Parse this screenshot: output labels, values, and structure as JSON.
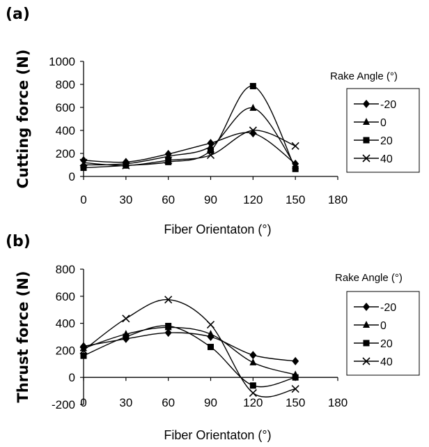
{
  "chart_data": [
    {
      "panel_label": "(a)",
      "type": "line",
      "ylabel": "Cutting force (N)",
      "xlabel": "Fiber Orientaton (°)",
      "x_ticks": [
        "0",
        "30",
        "60",
        "90",
        "120",
        "150",
        "180"
      ],
      "y_ticks": [
        "0",
        "200",
        "400",
        "600",
        "800",
        "1000"
      ],
      "xlim": [
        0,
        180
      ],
      "ylim": [
        0,
        1000
      ],
      "legend_title": "Rake Angle (°)",
      "legend_position": "right",
      "x": [
        0,
        30,
        60,
        90,
        120,
        150
      ],
      "series": [
        {
          "name": "-20",
          "marker": "diamond",
          "values": [
            140,
            125,
            195,
            290,
            375,
            110
          ]
        },
        {
          "name": "0",
          "marker": "triangle",
          "values": [
            100,
            110,
            175,
            260,
            595,
            90
          ]
        },
        {
          "name": "20",
          "marker": "square",
          "values": [
            75,
            95,
            125,
            225,
            785,
            65
          ]
        },
        {
          "name": "40",
          "marker": "x",
          "values": [
            120,
            95,
            140,
            185,
            400,
            265
          ]
        }
      ]
    },
    {
      "panel_label": "(b)",
      "type": "line",
      "ylabel": "Thrust force (N)",
      "xlabel": "Fiber Orientaton (°)",
      "x_ticks": [
        "0",
        "30",
        "60",
        "90",
        "120",
        "150",
        "180"
      ],
      "y_ticks": [
        "-200",
        "0",
        "200",
        "400",
        "600",
        "800"
      ],
      "xlim": [
        0,
        180
      ],
      "ylim": [
        -200,
        800
      ],
      "legend_title": "Rake Angle (°)",
      "legend_position": "right",
      "x": [
        0,
        30,
        60,
        90,
        120,
        150
      ],
      "series": [
        {
          "name": "-20",
          "marker": "diamond",
          "values": [
            230,
            285,
            330,
            300,
            165,
            120
          ]
        },
        {
          "name": "0",
          "marker": "triangle",
          "values": [
            215,
            320,
            370,
            320,
            110,
            20
          ]
        },
        {
          "name": "20",
          "marker": "square",
          "values": [
            160,
            300,
            380,
            225,
            -60,
            0
          ]
        },
        {
          "name": "40",
          "marker": "x",
          "values": [
            200,
            435,
            575,
            390,
            -115,
            -85
          ]
        }
      ]
    }
  ]
}
